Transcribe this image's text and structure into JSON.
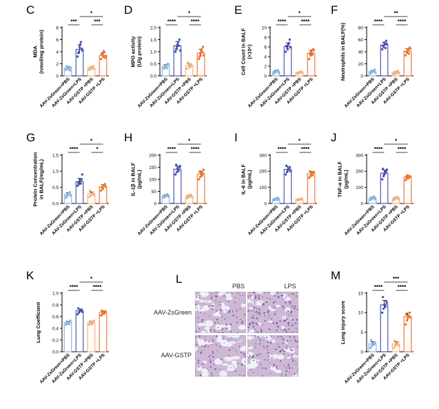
{
  "colors": {
    "c1": "#8ab4e0",
    "c2": "#4a56b0",
    "c3": "#f3b27c",
    "c4": "#ef7630"
  },
  "categories": [
    "AAV-ZsGreen+PBS",
    "AAV-ZsGreen+LPS",
    "AAV-GSTP +PBS",
    "AAV-GSTP +LPS"
  ],
  "micrograph": {
    "label": "L",
    "columns": [
      "PBS",
      "LPS"
    ],
    "rows": [
      "AAV-ZsGreen",
      "AAV-GSTP"
    ]
  },
  "chart_data": [
    {
      "label": "C",
      "type": "bar",
      "ylabel": "MDA\n(nmol/mg protein)",
      "ylim": [
        0,
        8
      ],
      "yticks": [
        0,
        2,
        4,
        6,
        8
      ],
      "values": [
        1.3,
        4.4,
        1.3,
        3.4
      ],
      "points": [
        [
          1.0,
          1.2,
          1.5,
          0.9,
          1.6,
          1.3,
          1.1,
          1.4
        ],
        [
          3.2,
          4.0,
          5.2,
          4.5,
          3.8,
          4.8,
          5.6,
          4.2
        ],
        [
          1.0,
          1.4,
          1.2,
          1.6,
          1.1,
          1.5,
          1.3,
          1.2
        ],
        [
          2.8,
          3.5,
          4.1,
          3.0,
          3.6,
          3.2,
          3.9,
          3.3
        ]
      ],
      "sig": [
        {
          "a": 0,
          "b": 1,
          "text": "***",
          "level": 1
        },
        {
          "a": 2,
          "b": 3,
          "text": "***",
          "level": 1
        },
        {
          "a": 1,
          "b": 3,
          "text": "*",
          "level": 2
        }
      ]
    },
    {
      "label": "D",
      "type": "bar",
      "ylabel": "MPO activity\n(U/g protein)",
      "ylim": [
        0,
        2.0
      ],
      "yticks": [
        0.0,
        0.5,
        1.0,
        1.5,
        2.0
      ],
      "values": [
        0.4,
        1.25,
        0.42,
        0.95
      ],
      "points": [
        [
          0.3,
          0.35,
          0.45,
          0.5,
          0.38,
          0.42,
          0.32,
          0.48
        ],
        [
          1.0,
          1.2,
          1.4,
          1.5,
          1.1,
          1.3,
          1.25,
          1.05
        ],
        [
          0.3,
          0.5,
          0.35,
          0.45,
          0.55,
          0.4,
          0.38,
          0.42
        ],
        [
          0.7,
          0.9,
          1.1,
          1.2,
          0.8,
          0.95,
          1.0,
          0.85
        ]
      ],
      "sig": [
        {
          "a": 0,
          "b": 1,
          "text": "****",
          "level": 1
        },
        {
          "a": 2,
          "b": 3,
          "text": "****",
          "level": 1
        },
        {
          "a": 1,
          "b": 3,
          "text": "*",
          "level": 2
        }
      ]
    },
    {
      "label": "E",
      "type": "bar",
      "ylabel": "Cell Count in BALF\n(×10⁶)",
      "ylim": [
        0,
        10
      ],
      "yticks": [
        0,
        2,
        4,
        6,
        8,
        10
      ],
      "values": [
        0.9,
        6.1,
        0.7,
        4.7
      ],
      "points": [
        [
          0.5,
          0.8,
          1.0,
          1.2,
          0.7,
          0.9,
          1.1,
          0.6
        ],
        [
          5.0,
          5.8,
          6.5,
          7.5,
          6.2,
          5.5,
          6.8,
          5.9
        ],
        [
          0.5,
          0.6,
          0.8,
          0.9,
          0.7,
          0.6,
          0.8,
          0.7
        ],
        [
          3.5,
          4.2,
          4.8,
          5.5,
          4.6,
          5.0,
          4.4,
          5.3
        ]
      ],
      "sig": [
        {
          "a": 0,
          "b": 1,
          "text": "****",
          "level": 1
        },
        {
          "a": 2,
          "b": 3,
          "text": "****",
          "level": 1
        },
        {
          "a": 1,
          "b": 3,
          "text": "*",
          "level": 2
        }
      ]
    },
    {
      "label": "F",
      "type": "bar",
      "ylabel": "Neutrophils in BALF(%)",
      "ylim": [
        0,
        80
      ],
      "yticks": [
        0,
        20,
        40,
        60,
        80
      ],
      "values": [
        7,
        51,
        6,
        41
      ],
      "points": [
        [
          4,
          6,
          8,
          10,
          5,
          7,
          9,
          6
        ],
        [
          44,
          48,
          52,
          58,
          50,
          55,
          46,
          53
        ],
        [
          3,
          5,
          7,
          8,
          6,
          4,
          7,
          5
        ],
        [
          34,
          38,
          42,
          47,
          40,
          44,
          37,
          45
        ]
      ],
      "sig": [
        {
          "a": 0,
          "b": 1,
          "text": "****",
          "level": 1
        },
        {
          "a": 2,
          "b": 3,
          "text": "****",
          "level": 1
        },
        {
          "a": 1,
          "b": 3,
          "text": "**",
          "level": 2
        }
      ]
    },
    {
      "label": "G",
      "type": "bar",
      "ylabel": "Protein Concentration\nin BALF(mg/mL)",
      "ylim": [
        0,
        1.5
      ],
      "yticks": [
        0.0,
        0.5,
        1.0,
        1.5
      ],
      "values": [
        0.28,
        0.68,
        0.3,
        0.52
      ],
      "points": [
        [
          0.18,
          0.22,
          0.3,
          0.35,
          0.25,
          0.28,
          0.32,
          0.24
        ],
        [
          0.55,
          0.6,
          0.7,
          0.75,
          0.65,
          0.72,
          0.62,
          0.9
        ],
        [
          0.2,
          0.25,
          0.3,
          0.35,
          0.4,
          0.28,
          0.32,
          0.26
        ],
        [
          0.4,
          0.48,
          0.55,
          0.6,
          0.5,
          0.45,
          0.58,
          0.52
        ]
      ],
      "sig": [
        {
          "a": 0,
          "b": 1,
          "text": "****",
          "level": 1
        },
        {
          "a": 2,
          "b": 3,
          "text": "*",
          "level": 1
        },
        {
          "a": 1,
          "b": 3,
          "text": "*",
          "level": 2
        }
      ]
    },
    {
      "label": "H",
      "type": "bar",
      "ylabel": "IL-1β in BALF\n(pg/mL)",
      "ylim": [
        0,
        200
      ],
      "yticks": [
        0,
        50,
        100,
        150,
        200
      ],
      "values": [
        32,
        142,
        30,
        122
      ],
      "points": [
        [
          25,
          28,
          32,
          36,
          30,
          34,
          38,
          29
        ],
        [
          120,
          130,
          140,
          150,
          160,
          145,
          135,
          155
        ],
        [
          22,
          26,
          30,
          34,
          28,
          32,
          36,
          27
        ],
        [
          100,
          110,
          118,
          125,
          132,
          128,
          115,
          140
        ]
      ],
      "sig": [
        {
          "a": 0,
          "b": 1,
          "text": "****",
          "level": 1
        },
        {
          "a": 2,
          "b": 3,
          "text": "****",
          "level": 1
        },
        {
          "a": 1,
          "b": 3,
          "text": "*",
          "level": 2
        }
      ]
    },
    {
      "label": "I",
      "type": "bar",
      "ylabel": "IL-6 in BALF\n(pg/mL)",
      "ylim": [
        0,
        300
      ],
      "yticks": [
        0,
        100,
        200,
        300
      ],
      "values": [
        28,
        212,
        26,
        185
      ],
      "points": [
        [
          20,
          25,
          30,
          35,
          28,
          32,
          22,
          26
        ],
        [
          180,
          195,
          210,
          225,
          235,
          205,
          215,
          200
        ],
        [
          20,
          24,
          28,
          30,
          26,
          22,
          29,
          25
        ],
        [
          160,
          170,
          180,
          190,
          200,
          185,
          175,
          195
        ]
      ],
      "sig": [
        {
          "a": 0,
          "b": 1,
          "text": "****",
          "level": 1
        },
        {
          "a": 2,
          "b": 3,
          "text": "****",
          "level": 1
        },
        {
          "a": 1,
          "b": 3,
          "text": "*",
          "level": 2
        }
      ]
    },
    {
      "label": "J",
      "type": "bar",
      "ylabel": "TNF-α in BALF\n(pg/mL)",
      "ylim": [
        0,
        300
      ],
      "yticks": [
        0,
        100,
        200,
        300
      ],
      "values": [
        33,
        188,
        33,
        163
      ],
      "points": [
        [
          22,
          28,
          34,
          40,
          30,
          36,
          42,
          26
        ],
        [
          150,
          170,
          185,
          200,
          215,
          180,
          195,
          210
        ],
        [
          22,
          28,
          34,
          40,
          30,
          36,
          38,
          26
        ],
        [
          145,
          155,
          160,
          170,
          165,
          175,
          158,
          168
        ]
      ],
      "sig": [
        {
          "a": 0,
          "b": 1,
          "text": "****",
          "level": 1
        },
        {
          "a": 2,
          "b": 3,
          "text": "****",
          "level": 1
        },
        {
          "a": 1,
          "b": 3,
          "text": "*",
          "level": 2
        }
      ]
    },
    {
      "label": "K",
      "type": "bar",
      "ylabel": "Lung Coefficient",
      "ylim": [
        0,
        1.0
      ],
      "yticks": [
        0.0,
        0.2,
        0.4,
        0.6,
        0.8,
        1.0
      ],
      "values": [
        0.5,
        0.7,
        0.5,
        0.67
      ],
      "points": [
        [
          0.46,
          0.48,
          0.5,
          0.52,
          0.49,
          0.51,
          0.47,
          0.53
        ],
        [
          0.64,
          0.67,
          0.7,
          0.72,
          0.74,
          0.69,
          0.71,
          0.68
        ],
        [
          0.46,
          0.48,
          0.5,
          0.52,
          0.49,
          0.51,
          0.47,
          0.53
        ],
        [
          0.62,
          0.64,
          0.66,
          0.68,
          0.7,
          0.67,
          0.65,
          0.69
        ]
      ],
      "sig": [
        {
          "a": 0,
          "b": 1,
          "text": "****",
          "level": 1
        },
        {
          "a": 2,
          "b": 3,
          "text": "****",
          "level": 1
        },
        {
          "a": 1,
          "b": 3,
          "text": "*",
          "level": 2
        }
      ]
    },
    {
      "label": "M",
      "type": "bar",
      "ylabel": "Lung injury score",
      "ylim": [
        0,
        15
      ],
      "yticks": [
        0,
        5,
        10,
        15
      ],
      "values": [
        2,
        12,
        2,
        9
      ],
      "points": [
        [
          1,
          1.5,
          2,
          2.5,
          3,
          2,
          1.8,
          2.2
        ],
        [
          10,
          11,
          12,
          13,
          14,
          12,
          11.5,
          12.5
        ],
        [
          1,
          1.5,
          2,
          2.5,
          2.8,
          1.8,
          2.2,
          1.6
        ],
        [
          7,
          8,
          9,
          10,
          9.5,
          8.5,
          9.2,
          8.8
        ]
      ],
      "sig": [
        {
          "a": 0,
          "b": 1,
          "text": "****",
          "level": 1
        },
        {
          "a": 2,
          "b": 3,
          "text": "****",
          "level": 1
        },
        {
          "a": 1,
          "b": 3,
          "text": "***",
          "level": 2
        }
      ]
    }
  ]
}
